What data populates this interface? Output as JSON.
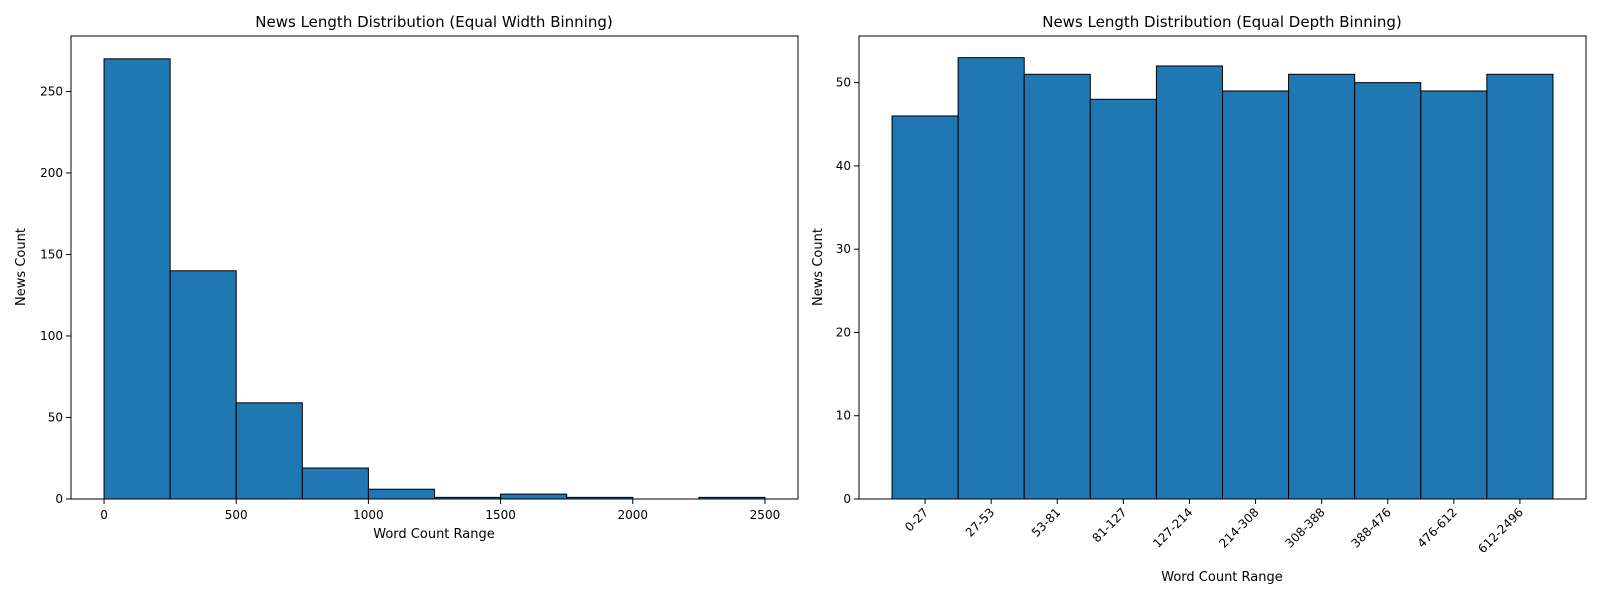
{
  "colors": {
    "bar_fill": "#1f77b4",
    "bar_edge": "#000000"
  },
  "chart_data": [
    {
      "type": "bar",
      "title": "News Length Distribution (Equal Width Binning)",
      "xlabel": "Word Count Range",
      "ylabel": "News Count",
      "xlim": [
        -125,
        2625
      ],
      "ylim": [
        0,
        284
      ],
      "xticks": [
        0,
        500,
        1000,
        1500,
        2000,
        2500
      ],
      "yticks": [
        0,
        50,
        100,
        150,
        200,
        250
      ],
      "bins": [
        {
          "start": 0,
          "end": 250,
          "value": 270
        },
        {
          "start": 250,
          "end": 500,
          "value": 140
        },
        {
          "start": 500,
          "end": 750,
          "value": 59
        },
        {
          "start": 750,
          "end": 1000,
          "value": 19
        },
        {
          "start": 1000,
          "end": 1250,
          "value": 6
        },
        {
          "start": 1250,
          "end": 1500,
          "value": 1
        },
        {
          "start": 1500,
          "end": 1750,
          "value": 3
        },
        {
          "start": 1750,
          "end": 2000,
          "value": 1
        },
        {
          "start": 2000,
          "end": 2250,
          "value": 0
        },
        {
          "start": 2250,
          "end": 2500,
          "value": 1
        }
      ],
      "grid": false
    },
    {
      "type": "bar",
      "title": "News Length Distribution (Equal Depth Binning)",
      "xlabel": "Word Count Range",
      "ylabel": "News Count",
      "ylim": [
        0,
        55.6
      ],
      "yticks": [
        0,
        10,
        20,
        30,
        40,
        50
      ],
      "categories": [
        "0-27",
        "27-53",
        "53-81",
        "81-127",
        "127-214",
        "214-308",
        "308-388",
        "388-476",
        "476-612",
        "612-2496"
      ],
      "values": [
        46,
        53,
        51,
        48,
        52,
        49,
        51,
        50,
        49,
        51
      ],
      "grid": false
    }
  ]
}
